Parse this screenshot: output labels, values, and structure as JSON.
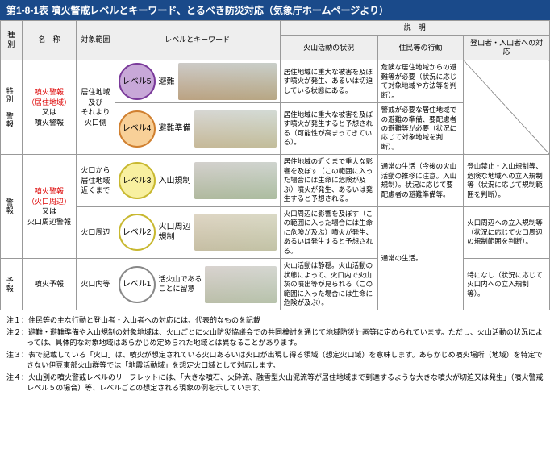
{
  "title": {
    "num": "第1-8-1表",
    "text": "噴火警戒レベルとキーワード、とるべき防災対応（気象庁ホームページより）"
  },
  "headers": {
    "shu": "種別",
    "name": "名　称",
    "range": "対象範囲",
    "lvl": "レベルとキーワード",
    "setsu": "説　明",
    "vol": "火山活動の状況",
    "res": "住民等の行動",
    "climb": "登山者・入山者への対応"
  },
  "cat": {
    "tokubetsu": "特別\n警報",
    "keiho": "警報",
    "yoho": "予報"
  },
  "names": {
    "n5": "噴火警報\n（居住地域）",
    "n5b": "又は\n噴火警報",
    "n3": "噴火警報\n（火口周辺）",
    "n3b": "又は\n火口周辺警報",
    "n1": "噴火予報"
  },
  "ranges": {
    "r5": "居住地域\n及び\nそれより\n火口側",
    "r3": "火口から\n居住地域\n近くまで",
    "r2": "火口周辺",
    "r1": "火口内等"
  },
  "levels": {
    "l5": {
      "label": "レベル5",
      "kw": "避難",
      "bg": "#c8a8d8",
      "bd": "#7a3a9a"
    },
    "l4": {
      "label": "レベル4",
      "kw": "避難準備",
      "bg": "#f8d098",
      "bd": "#d08030"
    },
    "l3": {
      "label": "レベル3",
      "kw": "入山規制",
      "bg": "#f8f0a0",
      "bd": "#c8b830"
    },
    "l2": {
      "label": "レベル2",
      "kw": "火口周辺\n規制",
      "bg": "#ffffff",
      "bd": "#c8b830"
    },
    "l1": {
      "label": "レベル1",
      "kw": "活火山である\nことに留意",
      "bg": "#ffffff",
      "bd": "#888888"
    }
  },
  "desc": {
    "v5": "居住地域に重大な被害を及ぼす噴火が発生、あるいは切迫している状態にある。",
    "v4": "居住地域に重大な被害を及ぼす噴火が発生すると予想される（可能性が高まってきている）。",
    "v3": "居住地域の近くまで重大な影響を及ぼす（この範囲に入った場合には生命に危険が及ぶ）噴火が発生、あるいは発生すると予想される。",
    "v2": "火口周辺に影響を及ぼす（この範囲に入った場合には生命に危険が及ぶ）噴火が発生、あるいは発生すると予想される。",
    "v1": "火山活動は静穏。火山活動の状態によって、火口内で火山灰の噴出等が見られる（この範囲に入った場合には生命に危険が及ぶ）。",
    "r5": "危険な居住地域からの避難等が必要（状況に応じて対象地域や方法等を判断）。",
    "r4": "警戒が必要な居住地域での避難の準備、要配慮者の避難等が必要（状況に応じて対象地域を判断）。",
    "r3": "通常の生活（今後の火山活動の推移に注意。入山規制）。状況に応じて要配慮者の避難準備等。",
    "r2": "通常の生活。",
    "c3": "登山禁止・入山規制等、危険な地域への立入規制等（状況に応じて規制範囲を判断）。",
    "c2": "火口周辺への立入規制等（状況に応じて火口周辺の規制範囲を判断）。",
    "c1": "特になし（状況に応じて火口内への立入規制等）。"
  },
  "notes": {
    "n1": "注１：住民等の主な行動と登山者・入山者への対応には、代表的なものを記載",
    "n2": "注２：避難・避難準備や入山規制の対象地域は、火山ごとに火山防災協議会での共同検討を通じて地域防災計画等に定められています。ただし、火山活動の状況によっては、具体的な対象地域はあらかじめ定められた地域とは異なることがあります。",
    "n3": "注３：表で記載している「火口」は、噴火が想定されている火口あるいは火口が出現し得る領域（想定火口域）を意味します。あらかじめ噴火場所（地域）を特定できない伊豆東部火山群等では「地震活動域」を想定火口域として対応します。",
    "n4": "注４：火山別の噴火警戒レベルのリーフレットには、「大きな噴石、火砕流、融雪型火山泥流等が居住地域まで到達するような大きな噴火が切迫又は発生」（噴火警戒レベル５の場合）等、レベルごとの想定される現象の例を示しています。"
  }
}
